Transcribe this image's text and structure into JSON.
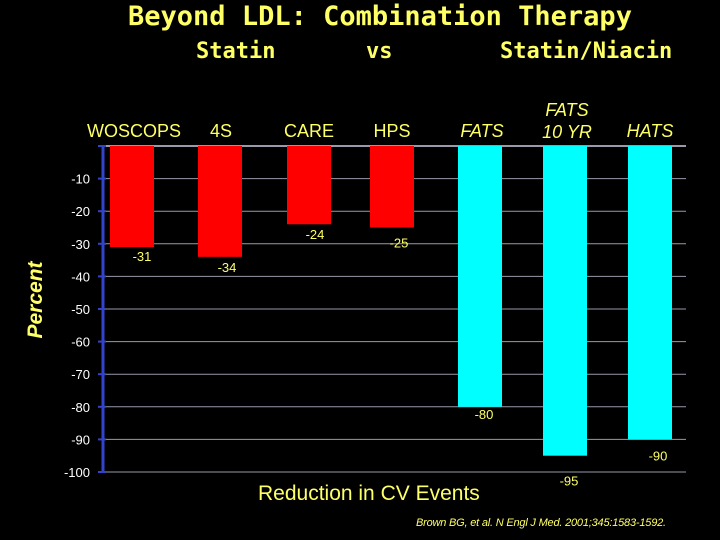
{
  "header": {
    "title": "Beyond LDL: Combination Therapy",
    "group_statin": "Statin",
    "group_vs": "vs",
    "group_combo": "Statin/Niacin"
  },
  "colors": {
    "background": "#000000",
    "text": "#ffff66",
    "statin_bar": "#ff0000",
    "combo_bar": "#00ffff",
    "axis": "#3344cc",
    "grid": "#9999aa",
    "value_label": "#ffff66"
  },
  "footer": {
    "caption": "Reduction in CV Events",
    "citation": "Brown BG, et al. N Engl J Med. 2001;345:1583-1592."
  },
  "chart_data": {
    "type": "bar",
    "title": "Beyond LDL: Combination Therapy",
    "xlabel": "Reduction in CV Events",
    "ylabel": "Percent",
    "ylim": [
      -100,
      0
    ],
    "yticks": [
      -10,
      -20,
      -30,
      -40,
      -50,
      -60,
      -70,
      -80,
      -90,
      -100
    ],
    "grid": true,
    "categories": [
      "WOSCOPS",
      "4S",
      "CARE",
      "HPS",
      "FATS",
      "FATS 10 YR",
      "HATS"
    ],
    "category_lines": [
      [
        "WOSCOPS"
      ],
      [
        "4S"
      ],
      [
        "CARE"
      ],
      [
        "HPS"
      ],
      [
        "FATS"
      ],
      [
        "FATS",
        "10 YR"
      ],
      [
        "HATS"
      ]
    ],
    "series": [
      {
        "name": "Statin",
        "values": [
          -31,
          -34,
          -24,
          -25,
          null,
          null,
          null
        ],
        "color": "#ff0000"
      },
      {
        "name": "Statin/Niacin",
        "values": [
          null,
          null,
          null,
          null,
          -80,
          -95,
          -90
        ],
        "color": "#00ffff"
      }
    ],
    "value_labels": [
      "-31",
      "-34",
      "-24",
      "-25",
      "-80",
      "-95",
      "-90"
    ]
  }
}
